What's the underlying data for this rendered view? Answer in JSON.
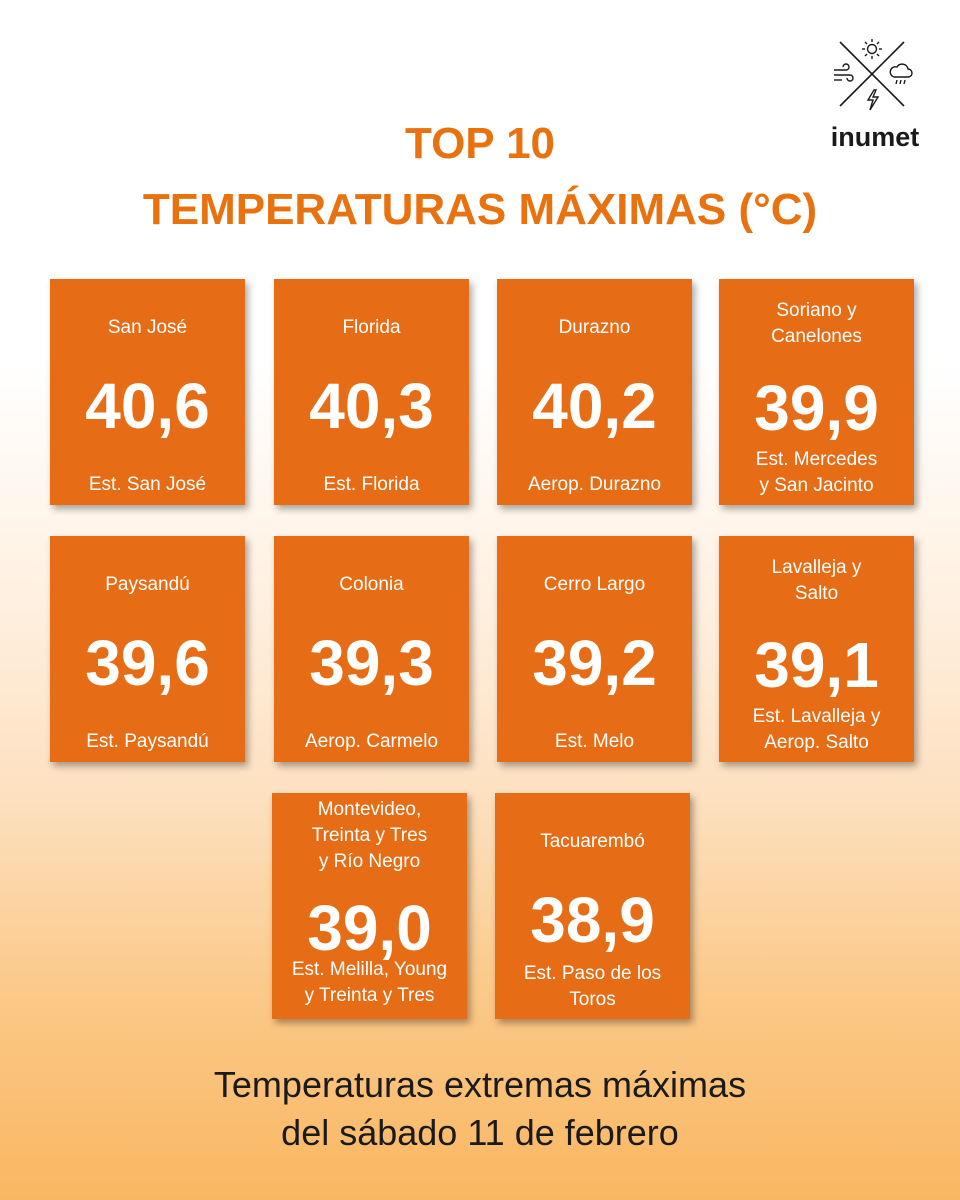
{
  "brand": {
    "name": "inumet",
    "icons": [
      "sun-icon",
      "wind-icon",
      "rain-cloud-icon",
      "lightning-icon"
    ]
  },
  "title": {
    "line1": "TOP 10",
    "line2": "TEMPERATURAS MÁXIMAS (°C)"
  },
  "cards": [
    {
      "dept": [
        "San José"
      ],
      "value": "40,6",
      "station": [
        "Est. San José"
      ]
    },
    {
      "dept": [
        "Florida"
      ],
      "value": "40,3",
      "station": [
        "Est. Florida"
      ]
    },
    {
      "dept": [
        "Durazno"
      ],
      "value": "40,2",
      "station": [
        "Aerop. Durazno"
      ]
    },
    {
      "dept": [
        "Soriano y",
        "Canelones"
      ],
      "value": "39,9",
      "station": [
        "Est. Mercedes",
        "y San Jacinto"
      ]
    },
    {
      "dept": [
        "Paysandú"
      ],
      "value": "39,6",
      "station": [
        "Est. Paysandú"
      ]
    },
    {
      "dept": [
        "Colonia"
      ],
      "value": "39,3",
      "station": [
        "Aerop. Carmelo"
      ]
    },
    {
      "dept": [
        "Cerro Largo"
      ],
      "value": "39,2",
      "station": [
        "Est. Melo"
      ]
    },
    {
      "dept": [
        "Lavalleja y",
        "Salto"
      ],
      "value": "39,1",
      "station": [
        "Est. Lavalleja y",
        "Aerop. Salto"
      ]
    },
    {
      "dept": [
        "Montevideo,",
        "Treinta y Tres",
        "y Río Negro"
      ],
      "value": "39,0",
      "station": [
        "Est. Melilla, Young",
        "y Treinta y Tres"
      ]
    },
    {
      "dept": [
        "Tacuarembó"
      ],
      "value": "38,9",
      "station": [
        "Est. Paso de los",
        "Toros"
      ]
    }
  ],
  "footer": {
    "line1": "Temperaturas extremas máximas",
    "line2": "del sábado 11 de febrero"
  },
  "colors": {
    "accent": "#e8720f",
    "card": "#e66c15",
    "text_dark": "#1a1a1a"
  }
}
